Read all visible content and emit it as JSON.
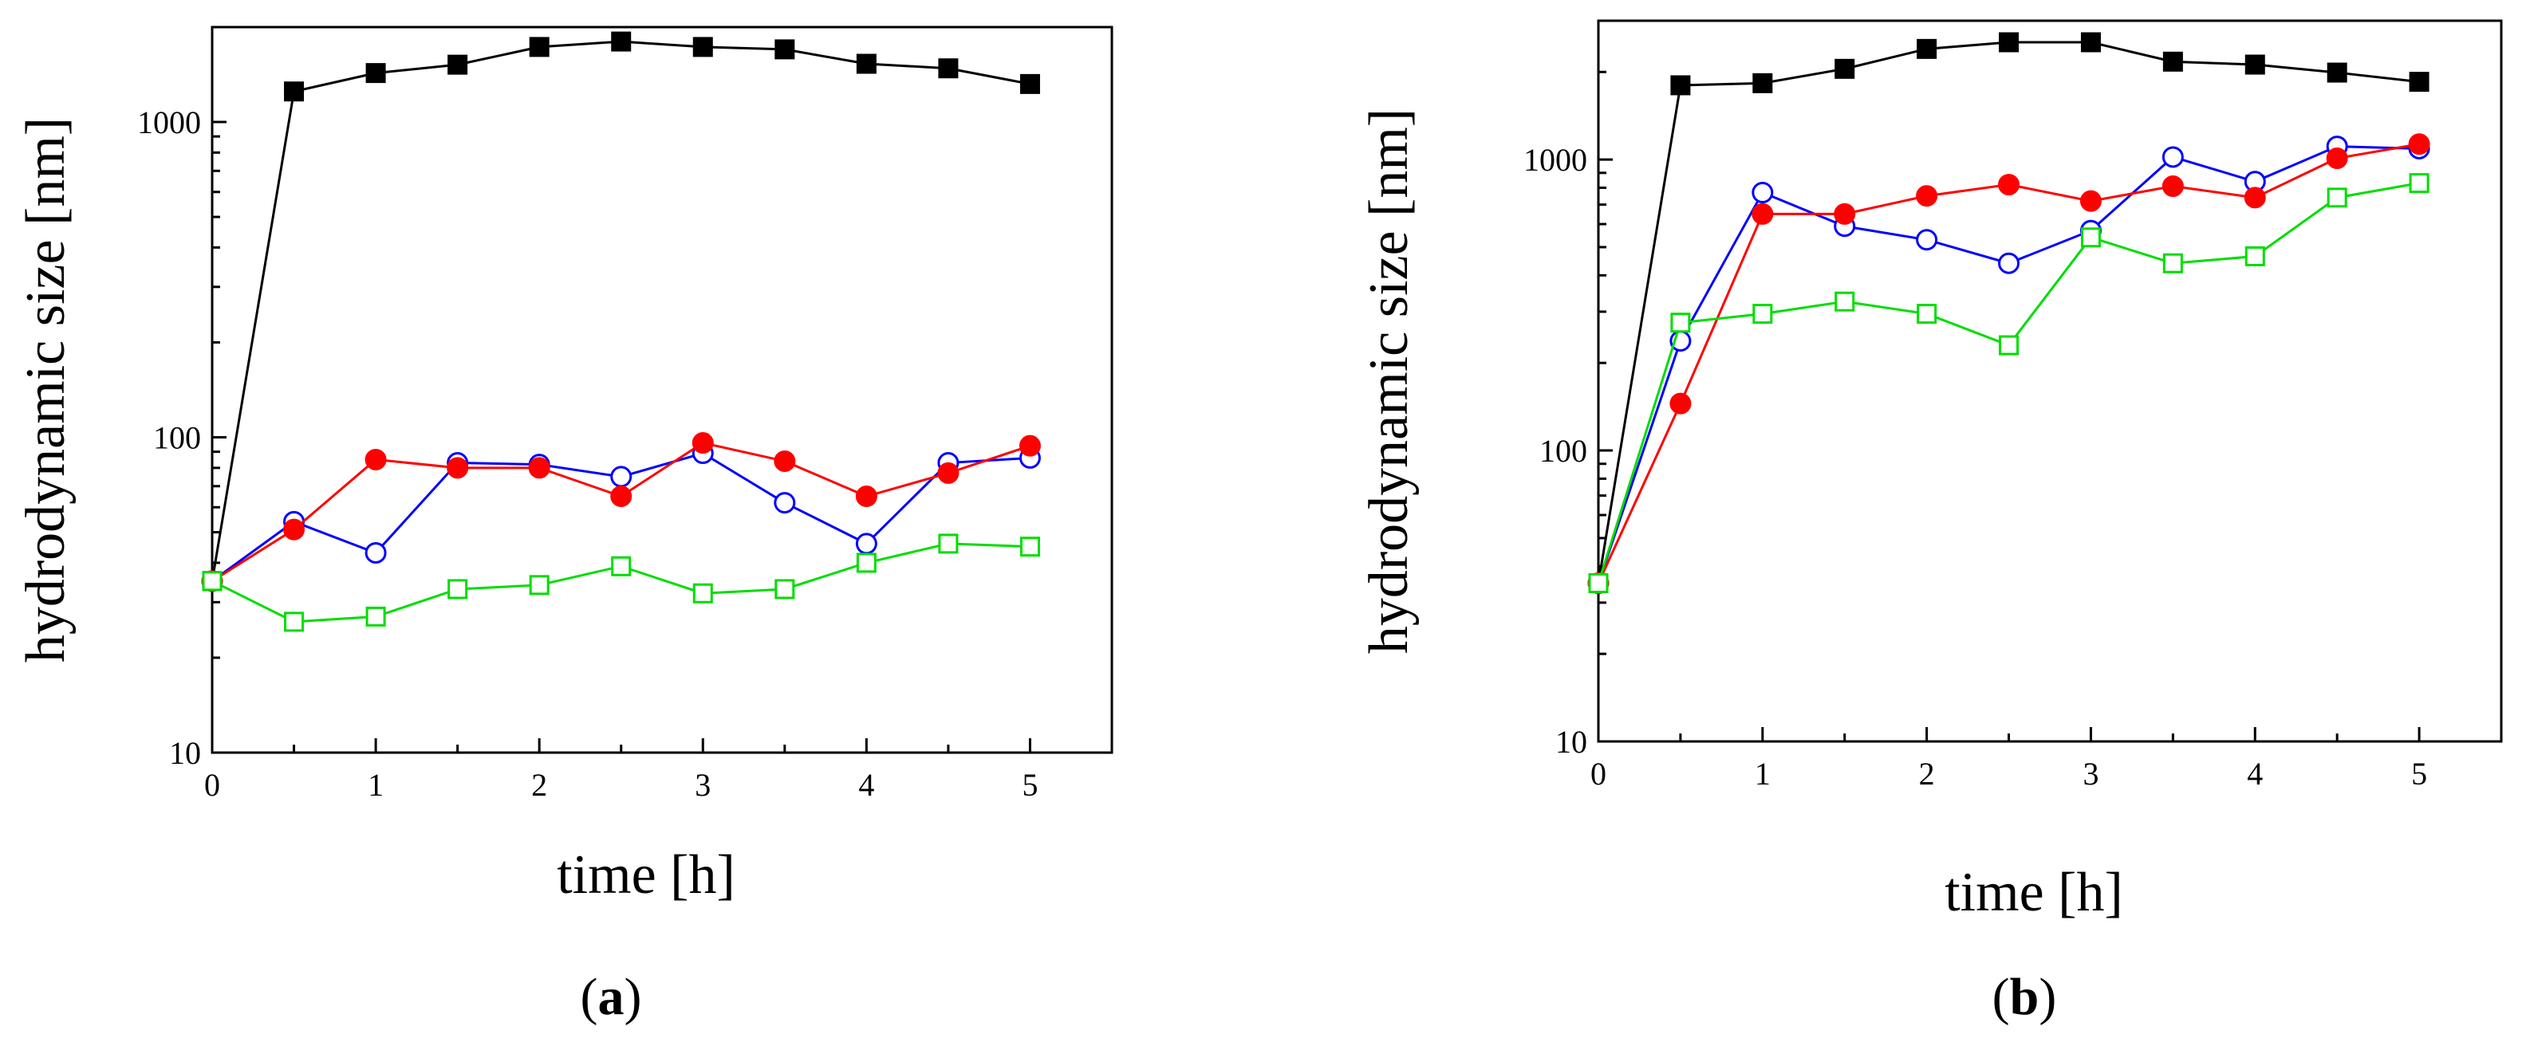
{
  "chart_data": [
    {
      "type": "line",
      "panel_label": "a",
      "xlabel": "time [h]",
      "ylabel": "hydrodynamic size [nm]",
      "x_ticks": [
        "0",
        "1",
        "2",
        "3",
        "4",
        "5"
      ],
      "y_ticks": [
        "10",
        "100",
        "1000"
      ],
      "xlim": [
        0,
        5.5
      ],
      "ylim": [
        10,
        2000
      ],
      "y_scale": "log",
      "x": [
        0,
        0.5,
        1,
        1.5,
        2,
        2.5,
        3,
        3.5,
        4,
        4.5,
        5
      ],
      "series": [
        {
          "name": "black filled squares",
          "color": "#000000",
          "marker": "square",
          "filled": true,
          "values": [
            35,
            1250,
            1430,
            1520,
            1730,
            1800,
            1730,
            1700,
            1530,
            1480,
            1320
          ]
        },
        {
          "name": "blue open circles",
          "color": "#0000ff",
          "marker": "circle",
          "filled": false,
          "values": [
            35,
            54,
            43,
            83,
            82,
            75,
            89,
            62,
            46,
            83,
            86
          ]
        },
        {
          "name": "red filled circles",
          "color": "#ff0000",
          "marker": "circle",
          "filled": true,
          "values": [
            35,
            51,
            85,
            80,
            80,
            65,
            96,
            84,
            65,
            77,
            94
          ]
        },
        {
          "name": "green open squares",
          "color": "#00dd00",
          "marker": "square",
          "filled": false,
          "values": [
            35,
            26,
            27,
            33,
            34,
            39,
            32,
            33,
            40,
            46,
            45
          ]
        }
      ]
    },
    {
      "type": "line",
      "panel_label": "b",
      "xlabel": "time [h]",
      "ylabel": "hydrodynamic size [nm]",
      "x_ticks": [
        "0",
        "1",
        "2",
        "3",
        "4",
        "5"
      ],
      "y_ticks": [
        "10",
        "100",
        "1000"
      ],
      "xlim": [
        0,
        5.5
      ],
      "ylim": [
        10,
        3000
      ],
      "y_scale": "log",
      "x": [
        0,
        0.5,
        1,
        1.5,
        2,
        2.5,
        3,
        3.5,
        4,
        4.5,
        5
      ],
      "series": [
        {
          "name": "black filled squares",
          "color": "#000000",
          "marker": "square",
          "filled": true,
          "values": [
            35,
            1800,
            1830,
            2050,
            2400,
            2530,
            2530,
            2170,
            2120,
            1990,
            1850
          ]
        },
        {
          "name": "blue open circles",
          "color": "#0000ff",
          "marker": "circle",
          "filled": false,
          "values": [
            35,
            238,
            770,
            590,
            530,
            440,
            570,
            1020,
            840,
            1110,
            1090
          ]
        },
        {
          "name": "red filled circles",
          "color": "#ff0000",
          "marker": "circle",
          "filled": true,
          "values": [
            35,
            145,
            650,
            650,
            750,
            820,
            720,
            810,
            740,
            1010,
            1130
          ]
        },
        {
          "name": "green open squares",
          "color": "#00dd00",
          "marker": "square",
          "filled": false,
          "values": [
            35,
            275,
            295,
            325,
            295,
            230,
            540,
            440,
            465,
            740,
            830
          ]
        }
      ]
    }
  ]
}
